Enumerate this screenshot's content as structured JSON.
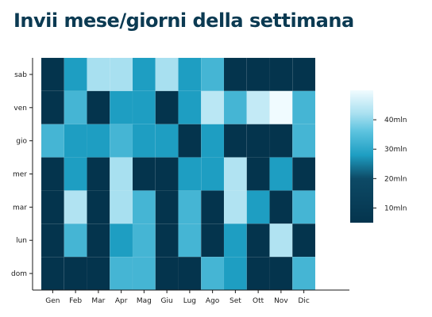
{
  "title": "Invii mese/giorni della settimana",
  "chart_data": {
    "type": "heatmap",
    "title": "Invii mese/giorni della settimana",
    "x_categories": [
      "Gen",
      "Feb",
      "Mar",
      "Apr",
      "Mag",
      "Giu",
      "Lug",
      "Ago",
      "Set",
      "Ott",
      "Nov",
      "Dic"
    ],
    "y_categories": [
      "sab",
      "ven",
      "gio",
      "mer",
      "mar",
      "lun",
      "dom"
    ],
    "value_unit": "mln",
    "values": [
      [
        5,
        28,
        42,
        42,
        28,
        42,
        28,
        33,
        5,
        5,
        5,
        5
      ],
      [
        5,
        33,
        5,
        28,
        28,
        5,
        28,
        44,
        33,
        45,
        52,
        33
      ],
      [
        33,
        28,
        28,
        33,
        28,
        28,
        5,
        28,
        5,
        5,
        5,
        33
      ],
      [
        5,
        28,
        5,
        42,
        5,
        5,
        28,
        28,
        43,
        5,
        28,
        5
      ],
      [
        5,
        43,
        5,
        42,
        33,
        5,
        33,
        5,
        43,
        28,
        5,
        33
      ],
      [
        5,
        33,
        5,
        28,
        33,
        5,
        33,
        5,
        28,
        5,
        43,
        5
      ],
      [
        5,
        5,
        5,
        33,
        33,
        5,
        5,
        33,
        28,
        5,
        5,
        33
      ]
    ],
    "colorbar": {
      "ticks": [
        {
          "value": 40,
          "label": "40mln"
        },
        {
          "value": 30,
          "label": "30mln"
        },
        {
          "value": 20,
          "label": "20mln"
        },
        {
          "value": 10,
          "label": "10mln"
        }
      ],
      "min": 5,
      "max": 50
    },
    "colors": {
      "low": "#04344d",
      "mid": "#1e9ec2",
      "high": "#a8e0f0",
      "top": "#f0fbff",
      "title": "#0b3a52"
    },
    "grid": false
  }
}
